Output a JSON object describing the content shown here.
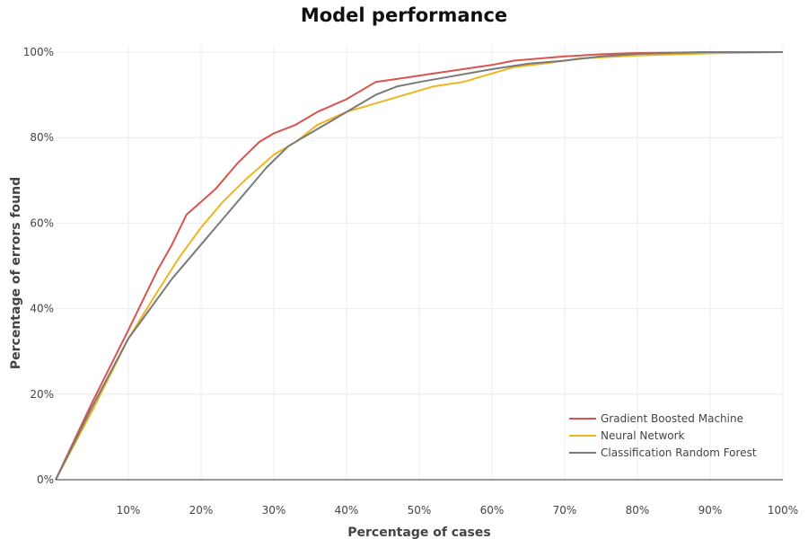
{
  "colors": {
    "background": "#ffffff",
    "grid": "#ececec",
    "axis_line": "#333333"
  },
  "chart_data": {
    "type": "line",
    "title": "Model performance",
    "xlabel": "Percentage of cases",
    "ylabel": "Percentage of errors found",
    "xlim": [
      0,
      100
    ],
    "ylim": [
      0,
      100
    ],
    "x_ticks": [
      10,
      20,
      30,
      40,
      50,
      60,
      70,
      80,
      90,
      100
    ],
    "x_tick_labels": [
      "10%",
      "20%",
      "30%",
      "40%",
      "50%",
      "60%",
      "70%",
      "80%",
      "90%",
      "100%"
    ],
    "y_ticks": [
      0,
      20,
      40,
      60,
      80,
      100
    ],
    "y_tick_labels": [
      "0%",
      "20%",
      "40%",
      "60%",
      "80%",
      "100%"
    ],
    "grid": true,
    "legend_position": "bottom-right",
    "series": [
      {
        "name": "Gradient Boosted Machine",
        "color": "#d9534f",
        "points": [
          [
            0,
            0
          ],
          [
            5,
            18
          ],
          [
            10,
            35
          ],
          [
            14,
            49
          ],
          [
            16,
            55
          ],
          [
            18,
            62
          ],
          [
            20,
            65
          ],
          [
            22,
            68
          ],
          [
            25,
            74
          ],
          [
            28,
            79
          ],
          [
            30,
            81
          ],
          [
            33,
            83
          ],
          [
            36,
            86
          ],
          [
            40,
            89
          ],
          [
            44,
            93
          ],
          [
            48,
            94
          ],
          [
            52,
            95
          ],
          [
            56,
            96
          ],
          [
            60,
            97
          ],
          [
            63,
            98
          ],
          [
            70,
            99
          ],
          [
            75,
            99.5
          ],
          [
            80,
            99.8
          ],
          [
            90,
            100
          ],
          [
            100,
            100
          ]
        ]
      },
      {
        "name": "Neural Network",
        "color": "#f0b41e",
        "points": [
          [
            0,
            0
          ],
          [
            5,
            16
          ],
          [
            10,
            33
          ],
          [
            14,
            44
          ],
          [
            17,
            52
          ],
          [
            20,
            59
          ],
          [
            23,
            65
          ],
          [
            26,
            70
          ],
          [
            30,
            76
          ],
          [
            33,
            79
          ],
          [
            36,
            83
          ],
          [
            40,
            86
          ],
          [
            44,
            88
          ],
          [
            48,
            90
          ],
          [
            52,
            92
          ],
          [
            56,
            93
          ],
          [
            60,
            95
          ],
          [
            63,
            96.5
          ],
          [
            68,
            97.5
          ],
          [
            72,
            98.5
          ],
          [
            80,
            99.2
          ],
          [
            90,
            99.7
          ],
          [
            100,
            100
          ]
        ]
      },
      {
        "name": "Classification Random Forest",
        "color": "#7a7a7a",
        "points": [
          [
            0,
            0
          ],
          [
            5,
            17
          ],
          [
            10,
            33
          ],
          [
            13,
            40
          ],
          [
            16,
            47
          ],
          [
            20,
            55
          ],
          [
            23,
            61
          ],
          [
            26,
            67
          ],
          [
            29,
            73
          ],
          [
            32,
            78
          ],
          [
            35,
            81
          ],
          [
            38,
            84
          ],
          [
            41,
            87
          ],
          [
            44,
            90
          ],
          [
            47,
            92
          ],
          [
            50,
            93
          ],
          [
            55,
            94.5
          ],
          [
            60,
            96
          ],
          [
            65,
            97.3
          ],
          [
            70,
            98
          ],
          [
            75,
            99
          ],
          [
            80,
            99.6
          ],
          [
            90,
            100
          ],
          [
            100,
            100
          ]
        ]
      }
    ]
  }
}
